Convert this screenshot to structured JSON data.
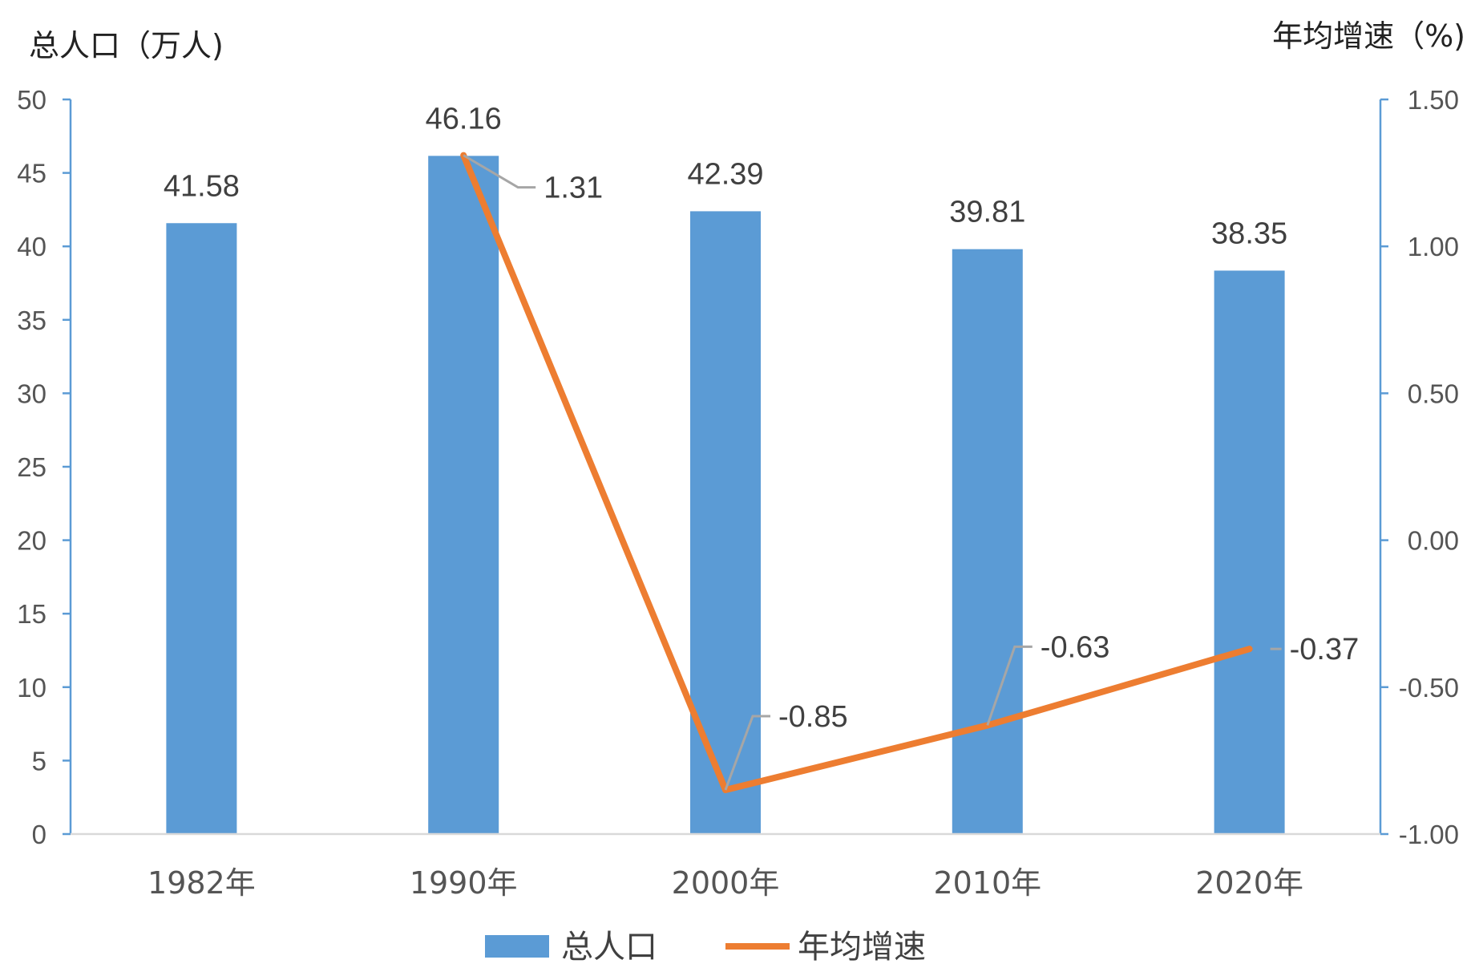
{
  "chart_data": {
    "type": "bar",
    "categories": [
      "1982年",
      "1990年",
      "2000年",
      "2010年",
      "2020年"
    ],
    "series": [
      {
        "name": "总人口",
        "type": "bar",
        "axis": "left",
        "color": "#5b9bd5",
        "values": [
          41.58,
          46.16,
          42.39,
          39.81,
          38.35
        ],
        "labels": [
          "41.58",
          "46.16",
          "42.39",
          "39.81",
          "38.35"
        ]
      },
      {
        "name": "年均增速",
        "type": "line",
        "axis": "right",
        "color": "#ed7d31",
        "values": [
          null,
          1.31,
          -0.85,
          -0.63,
          -0.37
        ],
        "labels": [
          "",
          "1.31",
          "-0.85",
          "-0.63",
          "-0.37"
        ]
      }
    ],
    "y_left": {
      "label": "总人口（万人)",
      "lim": [
        0,
        50
      ],
      "ticks": [
        "0",
        "5",
        "10",
        "15",
        "20",
        "25",
        "30",
        "35",
        "40",
        "45",
        "50"
      ]
    },
    "y_right": {
      "label": "年均增速（%)",
      "lim": [
        -1.0,
        1.5
      ],
      "ticks": [
        "-1.00",
        "-0.50",
        "0.00",
        "0.50",
        "1.00",
        "1.50"
      ]
    },
    "grid": false,
    "legend": "bottom",
    "axis_color": "#5b9bd5",
    "leader_color": "#a6a6a6"
  }
}
